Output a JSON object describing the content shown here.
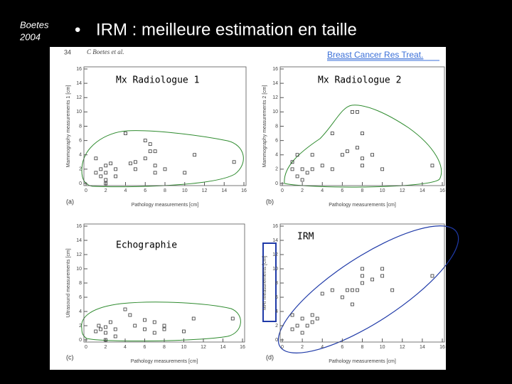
{
  "header": {
    "author": "Boetes",
    "year": "2004",
    "bullet": "IRM : meilleure estimation en taille"
  },
  "figure": {
    "page_number": "34",
    "running_head": "C Boetes et al.",
    "source": "Breast Cancer Res Treat."
  },
  "chart_data": [
    {
      "type": "scatter",
      "panel": "(a)",
      "annotation": "Mx Radiologue 1",
      "x_label": "Pathology measurements [cm]",
      "y_label": "Mammography measurements 1 [cm]",
      "xlim": [
        0,
        16
      ],
      "ylim": [
        0,
        16
      ],
      "xticks": [
        0,
        2,
        4,
        6,
        8,
        10,
        12,
        14,
        16
      ],
      "yticks": [
        0,
        2,
        4,
        6,
        8,
        10,
        12,
        14,
        16
      ],
      "x": [
        1,
        1,
        1.5,
        1.5,
        2,
        2,
        2,
        2.5,
        2,
        3,
        3,
        4,
        4.5,
        5,
        5,
        6,
        6,
        6.5,
        6.5,
        7,
        7,
        7,
        8,
        10,
        11,
        15
      ],
      "values": [
        1.5,
        3.5,
        2,
        1,
        2.5,
        1.5,
        0.5,
        2.8,
        0,
        2,
        1,
        7,
        2.8,
        3,
        2,
        6,
        3.5,
        5.5,
        4.5,
        4.5,
        1.5,
        2.5,
        2,
        1.5,
        4,
        3
      ]
    },
    {
      "type": "scatter",
      "panel": "(b)",
      "annotation": "Mx Radiologue 2",
      "x_label": "Pathology measurements [cm]",
      "y_label": "Mammography measurements 2 [cm]",
      "xlim": [
        0,
        16
      ],
      "ylim": [
        0,
        16
      ],
      "xticks": [
        0,
        2,
        4,
        6,
        8,
        10,
        12,
        14,
        16
      ],
      "yticks": [
        0,
        2,
        4,
        6,
        8,
        10,
        12,
        14,
        16
      ],
      "x": [
        1,
        1,
        1.5,
        1.5,
        2,
        2,
        2.5,
        3,
        3,
        4,
        5,
        5,
        6,
        6.5,
        7,
        7.5,
        7.5,
        8,
        8,
        8,
        9,
        10,
        15
      ],
      "values": [
        3,
        2,
        4,
        1,
        2,
        0.5,
        1.5,
        2,
        4,
        2.5,
        7,
        2,
        4,
        4.5,
        10,
        10,
        5,
        7,
        3.5,
        2.5,
        4,
        2,
        2.5
      ]
    },
    {
      "type": "scatter",
      "panel": "(c)",
      "annotation": "Echographie",
      "x_label": "Pathology measurements [cm]",
      "y_label": "Ultrasound measurements [cm]",
      "xlim": [
        0,
        16
      ],
      "ylim": [
        0,
        16
      ],
      "xticks": [
        0,
        2,
        4,
        6,
        8,
        10,
        12,
        14,
        16
      ],
      "yticks": [
        0,
        2,
        4,
        6,
        8,
        10,
        12,
        14,
        16
      ],
      "x": [
        1,
        1.3,
        1.5,
        2,
        2,
        2,
        2.5,
        3,
        3,
        4,
        4.5,
        5,
        6,
        6,
        7,
        7,
        8,
        8,
        10,
        11,
        15
      ],
      "values": [
        1.2,
        2,
        1.5,
        1.8,
        1,
        0,
        2.5,
        1.5,
        0.5,
        4.3,
        3.5,
        2,
        1.5,
        2.8,
        1,
        2.5,
        2,
        1.5,
        1.2,
        3,
        3
      ]
    },
    {
      "type": "scatter",
      "panel": "(d)",
      "annotation": "IRM",
      "x_label": "Pathology measurements [cm]",
      "y_label": "MRI measurements [cm]",
      "xlim": [
        0,
        16
      ],
      "ylim": [
        0,
        16
      ],
      "xticks": [
        0,
        2,
        4,
        6,
        8,
        10,
        12,
        14,
        16
      ],
      "yticks": [
        0,
        2,
        4,
        6,
        8,
        10,
        12,
        14,
        16
      ],
      "x": [
        1,
        1,
        1.5,
        2,
        2,
        2.5,
        3,
        3,
        3.5,
        4,
        5,
        6,
        6.5,
        7,
        7,
        7.5,
        8,
        8,
        8,
        9,
        10,
        10,
        11,
        15
      ],
      "values": [
        1.5,
        3.5,
        2,
        1,
        3,
        2,
        2.5,
        3.5,
        3,
        6.5,
        7,
        6,
        7,
        7,
        5,
        7,
        9,
        8,
        10,
        8.5,
        10,
        9,
        7,
        9
      ]
    }
  ]
}
